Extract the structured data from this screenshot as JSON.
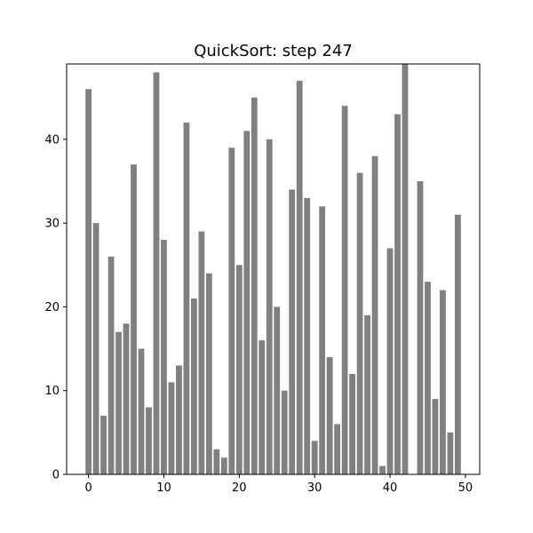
{
  "chart_data": {
    "type": "bar",
    "title": "QuickSort: step 247",
    "xlabel": "",
    "ylabel": "",
    "x": [
      0,
      1,
      2,
      3,
      4,
      5,
      6,
      7,
      8,
      9,
      10,
      11,
      12,
      13,
      14,
      15,
      16,
      17,
      18,
      19,
      20,
      21,
      22,
      23,
      24,
      25,
      26,
      27,
      28,
      29,
      30,
      31,
      32,
      33,
      34,
      35,
      36,
      37,
      38,
      39,
      40,
      41,
      42,
      43,
      44,
      45,
      46,
      47,
      48,
      49
    ],
    "values": [
      46,
      30,
      7,
      26,
      17,
      18,
      37,
      15,
      8,
      48,
      28,
      11,
      13,
      42,
      21,
      29,
      24,
      3,
      2,
      39,
      25,
      41,
      45,
      16,
      40,
      20,
      10,
      34,
      47,
      33,
      4,
      32,
      14,
      6,
      44,
      12,
      36,
      19,
      38,
      1,
      27,
      43,
      49,
      0,
      35,
      23,
      9,
      22,
      5,
      31
    ],
    "xlim": [
      -2.9,
      51.9
    ],
    "ylim": [
      0,
      49
    ],
    "xticks": [
      0,
      10,
      20,
      30,
      40,
      50
    ],
    "yticks": [
      0,
      10,
      20,
      30,
      40
    ],
    "bar_color": "#808080",
    "grid": false,
    "legend": "none"
  }
}
